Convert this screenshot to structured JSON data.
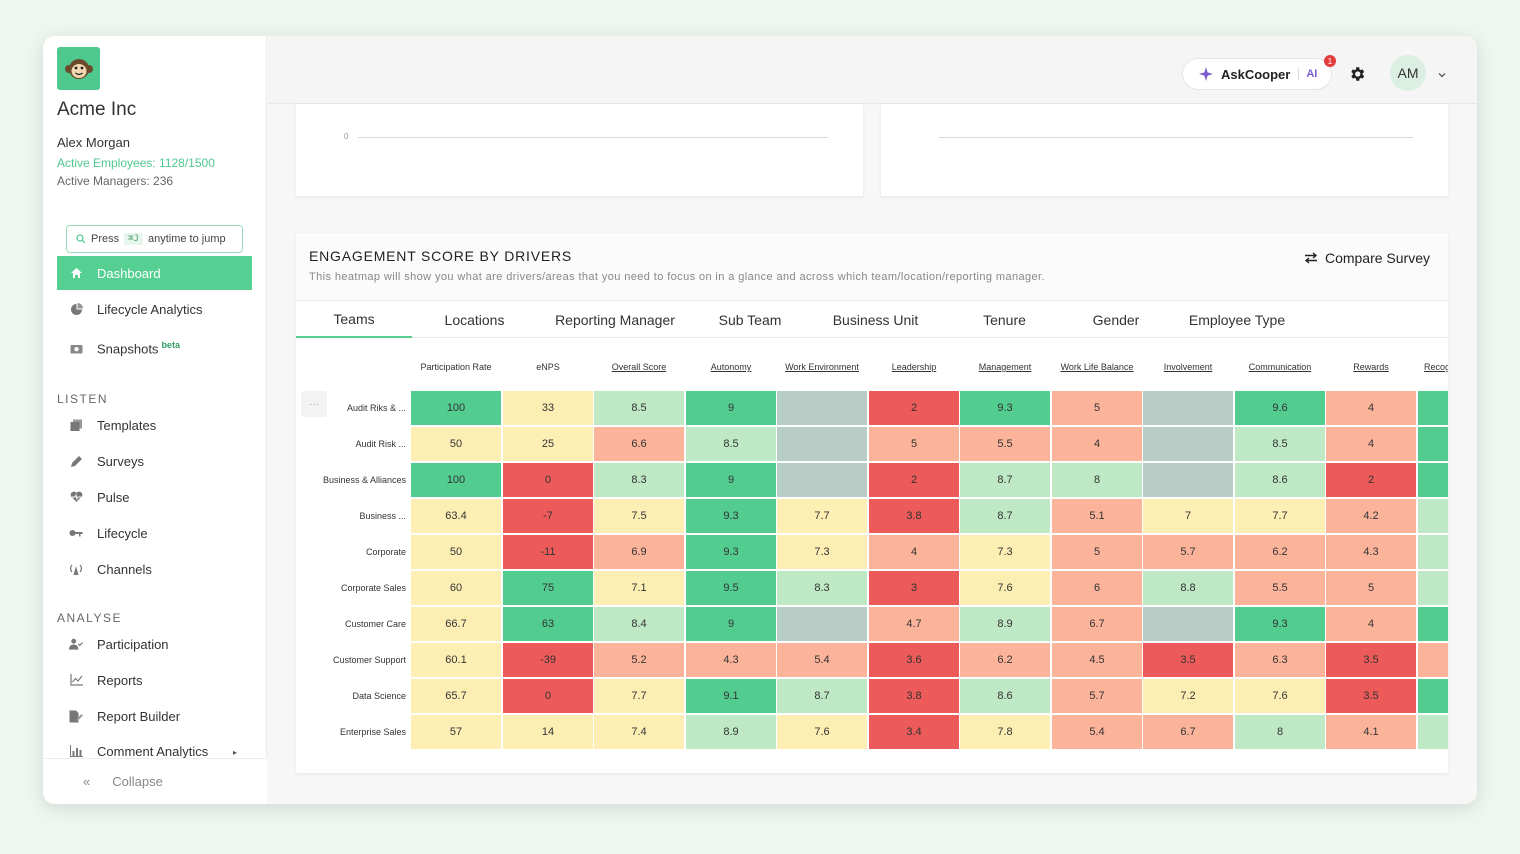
{
  "company": "Acme Inc",
  "user": {
    "name": "Alex Morgan",
    "active_employees": "Active Employees: 1128/1500",
    "active_managers": "Active Managers: 236"
  },
  "jump": {
    "press": "Press",
    "shortcut": "⌘J",
    "suffix": "anytime to jump"
  },
  "nav": {
    "dashboard": "Dashboard",
    "lifecycle_analytics": "Lifecycle Analytics",
    "snapshots": "Snapshots",
    "beta": "beta",
    "listen_title": "LISTEN",
    "templates": "Templates",
    "surveys": "Surveys",
    "pulse": "Pulse",
    "lifecycle": "Lifecycle",
    "channels": "Channels",
    "analyse_title": "ANALYSE",
    "participation": "Participation",
    "reports": "Reports",
    "report_builder": "Report Builder",
    "comment_analytics": "Comment Analytics",
    "collapse": "Collapse"
  },
  "topbar": {
    "askcooper": "AskCooper",
    "ai": "AI",
    "notification_count": "1",
    "avatar_initials": "AM"
  },
  "top_chart": {
    "zero_label": "0"
  },
  "heatmap": {
    "title": "ENGAGEMENT SCORE BY DRIVERS",
    "subtitle": "This heatmap will show you what are drivers/areas that you need to focus on in a glance and across which team/location/reporting manager.",
    "compare": "Compare Survey",
    "more": "···",
    "tabs": [
      "Teams",
      "Locations",
      "Reporting Manager",
      "Sub Team",
      "Business Unit",
      "Tenure",
      "Gender",
      "Employee Type"
    ],
    "columns": [
      "Participation Rate",
      "eNPS",
      "Overall Score",
      "Autonomy",
      "Work Environment",
      "Leadership",
      "Management",
      "Work Life Balance",
      "Involvement",
      "Communication",
      "Rewards",
      "Recog"
    ],
    "rows": [
      {
        "label": "Audit Riks & ...",
        "values": [
          "100",
          "33",
          "8.5",
          "9",
          "",
          "2",
          "9.3",
          "5",
          "",
          "9.6",
          "4",
          ""
        ]
      },
      {
        "label": "Audit Risk ...",
        "values": [
          "50",
          "25",
          "6.6",
          "8.5",
          "",
          "5",
          "5.5",
          "4",
          "",
          "8.5",
          "4",
          ""
        ]
      },
      {
        "label": "Business & Alliances",
        "values": [
          "100",
          "0",
          "8.3",
          "9",
          "",
          "2",
          "8.7",
          "8",
          "",
          "8.6",
          "2",
          ""
        ]
      },
      {
        "label": "Business ...",
        "values": [
          "63.4",
          "-7",
          "7.5",
          "9.3",
          "7.7",
          "3.8",
          "8.7",
          "5.1",
          "7",
          "7.7",
          "4.2",
          ""
        ]
      },
      {
        "label": "Corporate",
        "values": [
          "50",
          "-11",
          "6.9",
          "9.3",
          "7.3",
          "4",
          "7.3",
          "5",
          "5.7",
          "6.2",
          "4.3",
          ""
        ]
      },
      {
        "label": "Corporate Sales",
        "values": [
          "60",
          "75",
          "7.1",
          "9.5",
          "8.3",
          "3",
          "7.6",
          "6",
          "8.8",
          "5.5",
          "5",
          ""
        ]
      },
      {
        "label": "Customer Care",
        "values": [
          "66.7",
          "63",
          "8.4",
          "9",
          "",
          "4.7",
          "8.9",
          "6.7",
          "",
          "9.3",
          "4",
          ""
        ]
      },
      {
        "label": "Customer Support",
        "values": [
          "60.1",
          "-39",
          "5.2",
          "4.3",
          "5.4",
          "3.6",
          "6.2",
          "4.5",
          "3.5",
          "6.3",
          "3.5",
          ""
        ]
      },
      {
        "label": "Data Science",
        "values": [
          "65.7",
          "0",
          "7.7",
          "9.1",
          "8.7",
          "3.8",
          "8.6",
          "5.7",
          "7.2",
          "7.6",
          "3.5",
          ""
        ]
      },
      {
        "label": "Enterprise Sales",
        "values": [
          "57",
          "14",
          "7.4",
          "8.9",
          "7.6",
          "3.4",
          "7.8",
          "5.4",
          "6.7",
          "8",
          "4.1",
          ""
        ]
      }
    ],
    "colors": [
      [
        "#53cc90",
        "#fdeeb4",
        "#bfe9c4",
        "#53cc90",
        "#b8cdc6",
        "#ec5a5a",
        "#53cc90",
        "#fbb39a",
        "#b8cdc6",
        "#53cc90",
        "#fbb39a",
        "#53cc90"
      ],
      [
        "#fdeeb4",
        "#fdeeb4",
        "#fbb39a",
        "#bfe9c4",
        "#b8cdc6",
        "#fbb39a",
        "#fbb39a",
        "#fbb39a",
        "#b8cdc6",
        "#bfe9c4",
        "#fbb39a",
        "#53cc90"
      ],
      [
        "#53cc90",
        "#ec5a5a",
        "#bfe9c4",
        "#53cc90",
        "#b8cdc6",
        "#ec5a5a",
        "#bfe9c4",
        "#bfe9c4",
        "#b8cdc6",
        "#bfe9c4",
        "#ec5a5a",
        "#53cc90"
      ],
      [
        "#fdeeb4",
        "#ec5a5a",
        "#fdeeb4",
        "#53cc90",
        "#fdeeb4",
        "#ec5a5a",
        "#bfe9c4",
        "#fbb39a",
        "#fdeeb4",
        "#fdeeb4",
        "#fbb39a",
        "#bfe9c4"
      ],
      [
        "#fdeeb4",
        "#ec5a5a",
        "#fbb39a",
        "#53cc90",
        "#fdeeb4",
        "#fbb39a",
        "#fdeeb4",
        "#fbb39a",
        "#fbb39a",
        "#fbb39a",
        "#fbb39a",
        "#bfe9c4"
      ],
      [
        "#fdeeb4",
        "#53cc90",
        "#fdeeb4",
        "#53cc90",
        "#bfe9c4",
        "#ec5a5a",
        "#fdeeb4",
        "#fbb39a",
        "#bfe9c4",
        "#fbb39a",
        "#fbb39a",
        "#bfe9c4"
      ],
      [
        "#fdeeb4",
        "#53cc90",
        "#bfe9c4",
        "#53cc90",
        "#b8cdc6",
        "#fbb39a",
        "#bfe9c4",
        "#fbb39a",
        "#b8cdc6",
        "#53cc90",
        "#fbb39a",
        "#53cc90"
      ],
      [
        "#fdeeb4",
        "#ec5a5a",
        "#fbb39a",
        "#fbb39a",
        "#fbb39a",
        "#ec5a5a",
        "#fbb39a",
        "#fbb39a",
        "#ec5a5a",
        "#fbb39a",
        "#ec5a5a",
        "#fbb39a"
      ],
      [
        "#fdeeb4",
        "#ec5a5a",
        "#fdeeb4",
        "#53cc90",
        "#bfe9c4",
        "#ec5a5a",
        "#bfe9c4",
        "#fbb39a",
        "#fdeeb4",
        "#fdeeb4",
        "#ec5a5a",
        "#53cc90"
      ],
      [
        "#fdeeb4",
        "#fdeeb4",
        "#fdeeb4",
        "#bfe9c4",
        "#fdeeb4",
        "#ec5a5a",
        "#fdeeb4",
        "#fbb39a",
        "#fbb39a",
        "#bfe9c4",
        "#fbb39a",
        "#bfe9c4"
      ]
    ]
  },
  "colors": {
    "accent": "#55cf92",
    "brand": "#4fc88e"
  }
}
